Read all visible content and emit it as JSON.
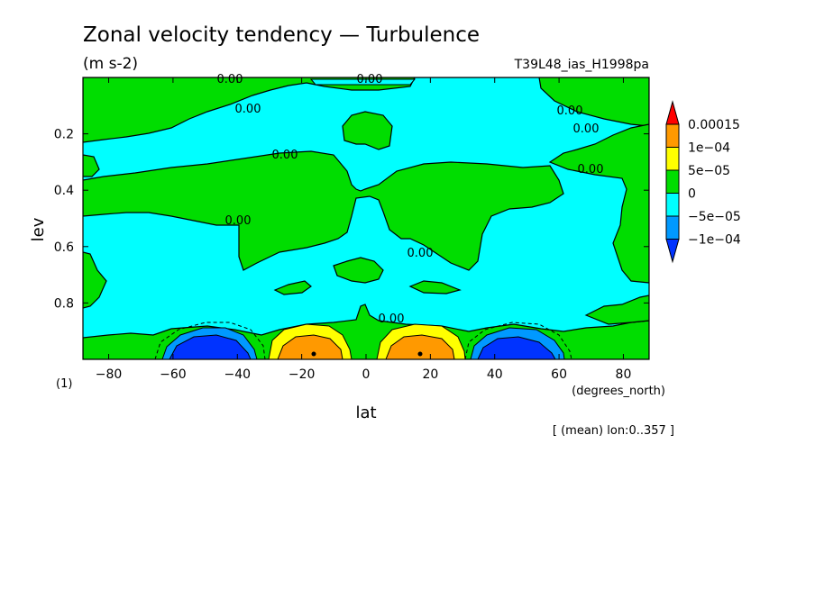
{
  "chart_data": {
    "type": "heatmap",
    "title": "Zonal velocity tendency — Turbulence",
    "units": "(m s-2)",
    "run_label": "T39L48_ias_H1998pa",
    "xlabel": "lat",
    "xunit_label": "(degrees_north)",
    "ylabel": "lev",
    "y_unit_label": "(1)",
    "mean_note": "[ (mean) lon:0..357 ]",
    "xlim": [
      -88,
      88
    ],
    "ylim": [
      0.0,
      1.0
    ],
    "y_inverted": true,
    "x_ticks": [
      -80,
      -60,
      -40,
      -20,
      0,
      20,
      40,
      60,
      80
    ],
    "x_tick_labels": [
      "−80",
      "−60",
      "−40",
      "−20",
      "0",
      "20",
      "40",
      "60",
      "80"
    ],
    "y_ticks": [
      0.2,
      0.4,
      0.6,
      0.8
    ],
    "y_tick_labels": [
      "0.2",
      "0.4",
      "0.6",
      "0.8"
    ],
    "contour_labels": [
      "0.00",
      "0.00",
      "0.00",
      "0.00",
      "0.00",
      "0.00",
      "0.00",
      "0.00",
      "0.00",
      "0.00",
      "0.00"
    ],
    "colorbar": {
      "levels": [
        "0.00015",
        "1e−04",
        "5e−05",
        "0",
        "−5e−05",
        "−1e−04"
      ],
      "colors": [
        "#ff0000",
        "#ff9900",
        "#ffff00",
        "#00dd00",
        "#00ffff",
        "#0099ff",
        "#0033ff"
      ]
    },
    "colors": {
      "neg_weak": "#00ffff",
      "pos_weak": "#00dd00",
      "pos_mid": "#ffff00",
      "pos_strong": "#ff9900",
      "neg_mid": "#0099ff",
      "neg_strong": "#0033ff"
    },
    "features": [
      {
        "lat_center": -45,
        "lev_top": 0.88,
        "sign": "negative",
        "peak": "-1e-04"
      },
      {
        "lat_center": -18,
        "lev_top": 0.85,
        "sign": "positive",
        "peak": "1e-04"
      },
      {
        "lat_center": 15,
        "lev_top": 0.85,
        "sign": "positive",
        "peak": "1e-04"
      },
      {
        "lat_center": 45,
        "lev_top": 0.88,
        "sign": "negative",
        "peak": "-1e-04"
      }
    ]
  }
}
